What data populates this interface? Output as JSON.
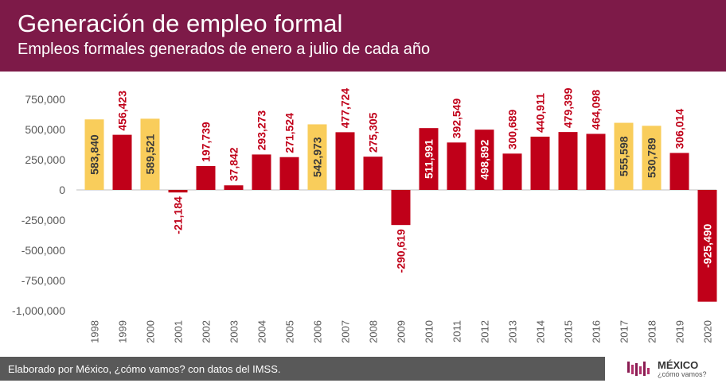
{
  "header": {
    "title": "Generación de empleo formal",
    "subtitle": "Empleos formales generados de enero a julio de cada año"
  },
  "footer": {
    "source": "Elaborado por México, ¿cómo vamos? con datos del IMSS.",
    "logo_text": "MÉXICO",
    "logo_sub": "¿cómo vamos?"
  },
  "colors": {
    "header_bg": "#7d1a48",
    "bar_red": "#c00019",
    "bar_yellow": "#f9cd5b",
    "label_red": "#c00019",
    "label_dark": "#3a3a3a",
    "label_white": "#ffffff"
  },
  "chart_data": {
    "type": "bar",
    "categories": [
      "1998",
      "1999",
      "2000",
      "2001",
      "2002",
      "2003",
      "2004",
      "2005",
      "2006",
      "2007",
      "2008",
      "2009",
      "2010",
      "2011",
      "2012",
      "2013",
      "2014",
      "2015",
      "2016",
      "2017",
      "2018",
      "2019",
      "2020"
    ],
    "values": [
      583840,
      456423,
      589521,
      -21184,
      197739,
      37842,
      293273,
      271524,
      542973,
      477724,
      275305,
      -290619,
      511991,
      392549,
      498892,
      300689,
      440911,
      479399,
      464098,
      555598,
      530789,
      306014,
      -925490
    ],
    "value_labels": [
      "583,840",
      "456,423",
      "589,521",
      "-21,184",
      "197,739",
      "37,842",
      "293,273",
      "271,524",
      "542,973",
      "477,724",
      "275,305",
      "-290,619",
      "511,991",
      "392,549",
      "498,892",
      "300,689",
      "440,911",
      "479,399",
      "464,098",
      "555,598",
      "530,789",
      "306,014",
      "-925,490"
    ],
    "highlight": [
      true,
      false,
      true,
      false,
      false,
      false,
      false,
      false,
      true,
      false,
      false,
      false,
      false,
      false,
      false,
      false,
      false,
      false,
      false,
      true,
      true,
      false,
      false
    ],
    "inside_label": [
      true,
      false,
      true,
      false,
      false,
      false,
      false,
      false,
      true,
      false,
      false,
      false,
      true,
      false,
      true,
      false,
      false,
      false,
      false,
      true,
      true,
      false,
      true
    ],
    "yticks": [
      750000,
      500000,
      250000,
      0,
      -250000,
      -500000,
      -750000,
      -1000000
    ],
    "ytick_labels": [
      "750,000",
      "500,000",
      "250,000",
      "0",
      "-250,000",
      "-500,000",
      "-750,000",
      "-1,000,000"
    ],
    "ylim": [
      -1000000,
      850000
    ],
    "title": "Generación de empleo formal",
    "subtitle": "Empleos formales generados de enero a julio de cada año",
    "xlabel": "",
    "ylabel": "",
    "grid": false,
    "legend": "none"
  }
}
